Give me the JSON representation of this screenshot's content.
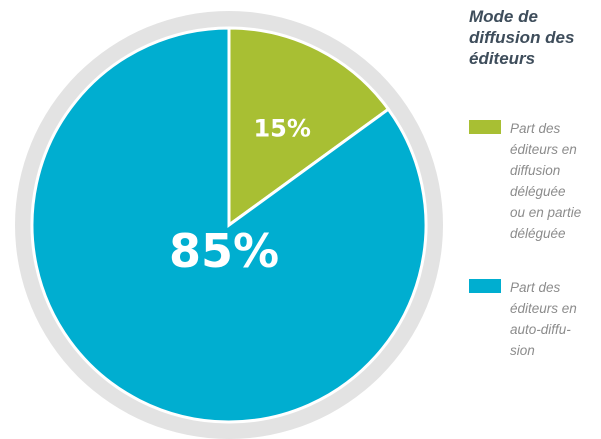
{
  "chart_data": {
    "type": "pie",
    "title": "Mode de diffusion des éditeurs",
    "title_lines": [
      "Mode de",
      "diffusion des",
      "éditeurs"
    ],
    "slices": [
      {
        "label": "Part des éditeurs en diffusion déléguée ou en partie déléguée",
        "label_lines": [
          "Part des",
          "éditeurs en",
          "diffusion",
          "déléguée",
          "ou en partie",
          "déléguée"
        ],
        "value": 15,
        "display": "15%",
        "color": "#a8bf33"
      },
      {
        "label": "Part des éditeurs en auto-diffusion",
        "label_lines": [
          "Part des",
          "éditeurs en",
          "auto-diffu-",
          "sion"
        ],
        "value": 85,
        "display": "85%",
        "color": "#00aed0"
      }
    ],
    "ring_color": "#e3e3e3",
    "legend_position": "right"
  }
}
